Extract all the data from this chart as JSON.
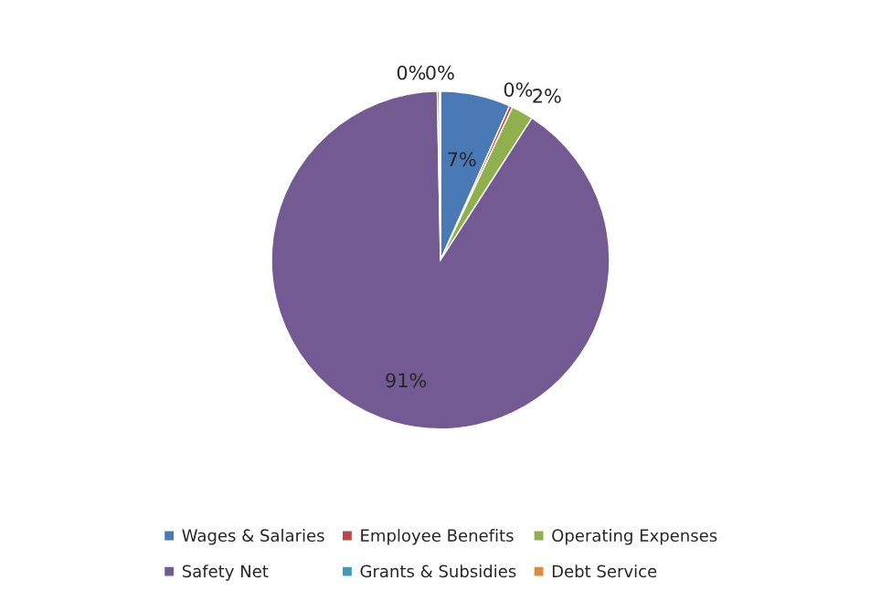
{
  "chart_data": {
    "type": "pie",
    "categories": [
      "Wages & Salaries",
      "Employee Benefits",
      "Operating Expenses",
      "Safety Net",
      "Grants & Subsidies",
      "Debt Service"
    ],
    "values": [
      6.7,
      0.3,
      2.1,
      90.6,
      0.2,
      0.1
    ],
    "value_labels": [
      "7%",
      "0%",
      "2%",
      "91%",
      "0%",
      "0%"
    ],
    "colors": [
      "#4a7ab5",
      "#b94a48",
      "#8fb04c",
      "#735a92",
      "#3f9cb8",
      "#e08a3c"
    ],
    "legend": "bottom"
  }
}
